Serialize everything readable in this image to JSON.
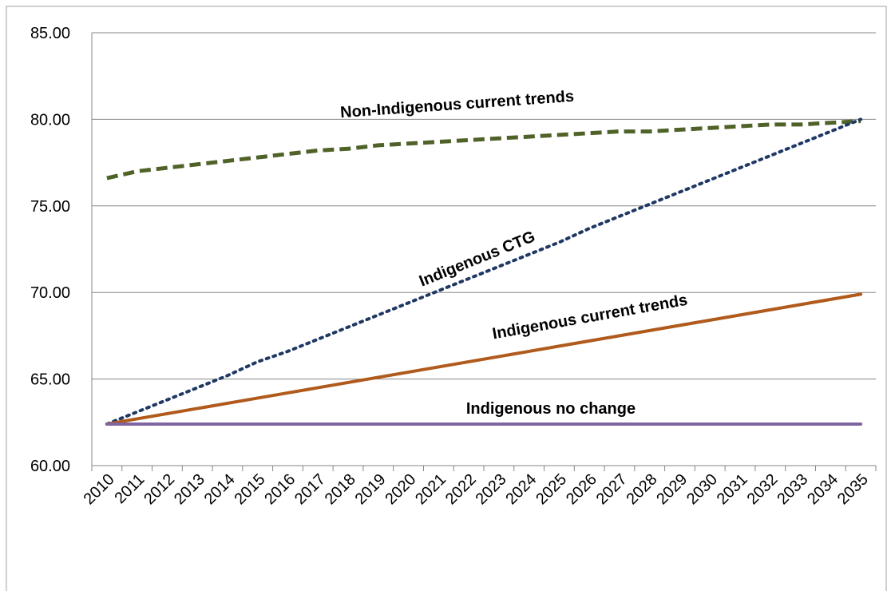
{
  "chart_data": {
    "type": "line",
    "categories": [
      "2010",
      "2011",
      "2012",
      "2013",
      "2014",
      "2015",
      "2016",
      "2017",
      "2018",
      "2019",
      "2020",
      "2021",
      "2022",
      "2023",
      "2024",
      "2025",
      "2026",
      "2027",
      "2028",
      "2029",
      "2030",
      "2031",
      "2032",
      "2033",
      "2034",
      "2035"
    ],
    "series": [
      {
        "name": "Non-Indigenous current trends",
        "color": "#4f6228",
        "dash": "dashed",
        "values": [
          76.6,
          77.0,
          77.2,
          77.4,
          77.6,
          77.8,
          78.0,
          78.2,
          78.3,
          78.5,
          78.6,
          78.7,
          78.8,
          78.9,
          79.0,
          79.1,
          79.2,
          79.3,
          79.3,
          79.4,
          79.5,
          79.6,
          79.7,
          79.7,
          79.8,
          79.9
        ]
      },
      {
        "name": "Indigenous CTG",
        "color": "#1f3864",
        "dash": "dotted",
        "values": [
          62.4,
          63.1,
          63.8,
          64.5,
          65.2,
          66.0,
          66.6,
          67.3,
          68.0,
          68.7,
          69.4,
          70.1,
          70.8,
          71.5,
          72.2,
          72.9,
          73.7,
          74.4,
          75.1,
          75.8,
          76.5,
          77.2,
          77.9,
          78.6,
          79.3,
          80.0
        ]
      },
      {
        "name": "Indigenous current trends",
        "color": "#b05a1c",
        "dash": "solid",
        "values": [
          62.4,
          62.7,
          63.0,
          63.3,
          63.6,
          63.9,
          64.2,
          64.5,
          64.8,
          65.1,
          65.4,
          65.7,
          66.0,
          66.3,
          66.6,
          66.9,
          67.2,
          67.5,
          67.8,
          68.1,
          68.4,
          68.7,
          69.0,
          69.3,
          69.6,
          69.9
        ]
      },
      {
        "name": "Indigenous no change",
        "color": "#8064a2",
        "dash": "solid",
        "values": [
          62.4,
          62.4,
          62.4,
          62.4,
          62.4,
          62.4,
          62.4,
          62.4,
          62.4,
          62.4,
          62.4,
          62.4,
          62.4,
          62.4,
          62.4,
          62.4,
          62.4,
          62.4,
          62.4,
          62.4,
          62.4,
          62.4,
          62.4,
          62.4,
          62.4,
          62.4
        ]
      }
    ],
    "ylim": [
      60,
      85
    ],
    "yticks": [
      {
        "value": 60,
        "label": "60.00"
      },
      {
        "value": 65,
        "label": "65.00"
      },
      {
        "value": 70,
        "label": "70.00"
      },
      {
        "value": 75,
        "label": "75.00"
      },
      {
        "value": 80,
        "label": "80.00"
      },
      {
        "value": 85,
        "label": "85.00"
      }
    ],
    "grid": true
  }
}
